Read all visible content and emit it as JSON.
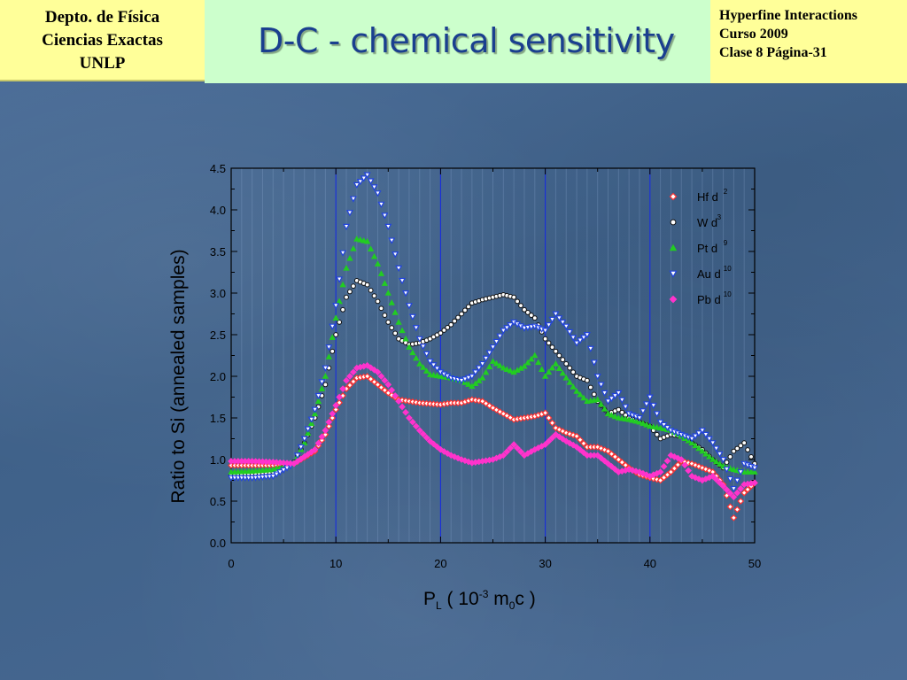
{
  "header": {
    "left_lines": [
      "Depto. de Física",
      "Ciencias Exactas",
      "UNLP"
    ],
    "title": "D-C -  chemical sensitivity",
    "right_lines": [
      "Hyperfine Interactions",
      "Curso 2009",
      "Clase 8  Página-31"
    ]
  },
  "chart_data": {
    "type": "scatter",
    "ylabel": "Ratio to Si (annealed samples)",
    "xlabel_parts": {
      "p": "P",
      "p_sub": "L",
      "open": " ( 10",
      "exp": "-3",
      "m": " m",
      "m_sub": "0",
      "close": "c )"
    },
    "xlim": [
      0,
      50
    ],
    "ylim": [
      0.0,
      4.5
    ],
    "xticks": [
      "0",
      "10",
      "20",
      "30",
      "40",
      "50"
    ],
    "yticks": [
      "0.0",
      "0.5",
      "1.0",
      "1.5",
      "2.0",
      "2.5",
      "3.0",
      "3.5",
      "4.0",
      "4.5"
    ],
    "legend_position": "top-right",
    "vertical_lines_x": [
      10,
      20,
      30,
      40
    ],
    "series": [
      {
        "name": "Hf d",
        "sup": "2",
        "marker": "diamond-open",
        "color": "#ff3333",
        "points": [
          [
            0,
            0.93
          ],
          [
            2,
            0.93
          ],
          [
            4,
            0.93
          ],
          [
            6,
            0.95
          ],
          [
            8,
            1.1
          ],
          [
            9,
            1.3
          ],
          [
            10,
            1.6
          ],
          [
            11,
            1.85
          ],
          [
            12,
            1.98
          ],
          [
            13,
            2.0
          ],
          [
            14,
            1.9
          ],
          [
            15,
            1.8
          ],
          [
            16,
            1.72
          ],
          [
            17,
            1.7
          ],
          [
            18,
            1.68
          ],
          [
            19,
            1.67
          ],
          [
            20,
            1.66
          ],
          [
            21,
            1.68
          ],
          [
            22,
            1.68
          ],
          [
            23,
            1.72
          ],
          [
            24,
            1.7
          ],
          [
            25,
            1.62
          ],
          [
            26,
            1.55
          ],
          [
            27,
            1.48
          ],
          [
            28,
            1.5
          ],
          [
            29,
            1.52
          ],
          [
            30,
            1.56
          ],
          [
            31,
            1.38
          ],
          [
            32,
            1.32
          ],
          [
            33,
            1.28
          ],
          [
            34,
            1.15
          ],
          [
            35,
            1.15
          ],
          [
            36,
            1.1
          ],
          [
            37,
            1.0
          ],
          [
            38,
            0.9
          ],
          [
            39,
            0.82
          ],
          [
            40,
            0.78
          ],
          [
            41,
            0.75
          ],
          [
            42,
            0.85
          ],
          [
            43,
            0.98
          ],
          [
            44,
            0.95
          ],
          [
            45,
            0.9
          ],
          [
            46,
            0.85
          ],
          [
            47,
            0.7
          ],
          [
            48,
            0.3
          ],
          [
            49,
            0.6
          ],
          [
            50,
            0.72
          ]
        ]
      },
      {
        "name": "W d",
        "sup": "3",
        "marker": "circle-open",
        "color": "#111111",
        "points": [
          [
            0,
            0.82
          ],
          [
            2,
            0.83
          ],
          [
            4,
            0.85
          ],
          [
            6,
            0.97
          ],
          [
            7,
            1.2
          ],
          [
            8,
            1.5
          ],
          [
            9,
            1.9
          ],
          [
            10,
            2.5
          ],
          [
            11,
            2.95
          ],
          [
            12,
            3.15
          ],
          [
            13,
            3.1
          ],
          [
            14,
            2.9
          ],
          [
            15,
            2.65
          ],
          [
            16,
            2.45
          ],
          [
            17,
            2.38
          ],
          [
            18,
            2.4
          ],
          [
            19,
            2.45
          ],
          [
            20,
            2.52
          ],
          [
            21,
            2.62
          ],
          [
            22,
            2.75
          ],
          [
            23,
            2.88
          ],
          [
            24,
            2.92
          ],
          [
            25,
            2.95
          ],
          [
            26,
            2.98
          ],
          [
            27,
            2.95
          ],
          [
            28,
            2.8
          ],
          [
            29,
            2.7
          ],
          [
            30,
            2.45
          ],
          [
            31,
            2.3
          ],
          [
            32,
            2.15
          ],
          [
            33,
            2.0
          ],
          [
            34,
            1.95
          ],
          [
            35,
            1.7
          ],
          [
            36,
            1.55
          ],
          [
            37,
            1.6
          ],
          [
            38,
            1.5
          ],
          [
            39,
            1.45
          ],
          [
            40,
            1.4
          ],
          [
            41,
            1.25
          ],
          [
            42,
            1.3
          ],
          [
            43,
            1.28
          ],
          [
            44,
            1.2
          ],
          [
            45,
            1.12
          ],
          [
            46,
            1.0
          ],
          [
            47,
            0.9
          ],
          [
            48,
            1.1
          ],
          [
            49,
            1.2
          ],
          [
            50,
            0.95
          ]
        ]
      },
      {
        "name": "Pt d",
        "sup": "9",
        "marker": "triangle-up",
        "color": "#22cc22",
        "points": [
          [
            0,
            0.85
          ],
          [
            2,
            0.86
          ],
          [
            4,
            0.88
          ],
          [
            6,
            0.96
          ],
          [
            7,
            1.2
          ],
          [
            8,
            1.55
          ],
          [
            9,
            2.0
          ],
          [
            10,
            2.7
          ],
          [
            11,
            3.3
          ],
          [
            12,
            3.65
          ],
          [
            13,
            3.62
          ],
          [
            14,
            3.35
          ],
          [
            15,
            3.0
          ],
          [
            16,
            2.65
          ],
          [
            17,
            2.35
          ],
          [
            18,
            2.15
          ],
          [
            19,
            2.02
          ],
          [
            20,
            2.0
          ],
          [
            21,
            1.98
          ],
          [
            22,
            1.95
          ],
          [
            23,
            1.88
          ],
          [
            24,
            1.98
          ],
          [
            25,
            2.18
          ],
          [
            26,
            2.1
          ],
          [
            27,
            2.05
          ],
          [
            28,
            2.12
          ],
          [
            29,
            2.25
          ],
          [
            30,
            2.0
          ],
          [
            31,
            2.15
          ],
          [
            32,
            1.98
          ],
          [
            33,
            1.82
          ],
          [
            34,
            1.7
          ],
          [
            35,
            1.72
          ],
          [
            36,
            1.55
          ],
          [
            37,
            1.5
          ],
          [
            38,
            1.48
          ],
          [
            39,
            1.45
          ],
          [
            40,
            1.4
          ],
          [
            41,
            1.38
          ],
          [
            42,
            1.35
          ],
          [
            43,
            1.28
          ],
          [
            44,
            1.2
          ],
          [
            45,
            1.1
          ],
          [
            46,
            1.0
          ],
          [
            47,
            0.92
          ],
          [
            48,
            0.88
          ],
          [
            49,
            0.85
          ],
          [
            50,
            0.85
          ]
        ]
      },
      {
        "name": "Au d",
        "sup": "10",
        "marker": "triangle-down",
        "color": "#2244dd",
        "points": [
          [
            0,
            0.78
          ],
          [
            2,
            0.78
          ],
          [
            4,
            0.8
          ],
          [
            6,
            0.95
          ],
          [
            7,
            1.25
          ],
          [
            8,
            1.6
          ],
          [
            9,
            2.1
          ],
          [
            10,
            2.85
          ],
          [
            11,
            3.8
          ],
          [
            12,
            4.3
          ],
          [
            13,
            4.42
          ],
          [
            14,
            4.2
          ],
          [
            15,
            3.8
          ],
          [
            16,
            3.3
          ],
          [
            17,
            2.85
          ],
          [
            18,
            2.45
          ],
          [
            19,
            2.18
          ],
          [
            20,
            2.05
          ],
          [
            21,
            1.98
          ],
          [
            22,
            1.95
          ],
          [
            23,
            2.0
          ],
          [
            24,
            2.15
          ],
          [
            25,
            2.35
          ],
          [
            26,
            2.55
          ],
          [
            27,
            2.65
          ],
          [
            28,
            2.58
          ],
          [
            29,
            2.6
          ],
          [
            30,
            2.55
          ],
          [
            31,
            2.75
          ],
          [
            32,
            2.6
          ],
          [
            33,
            2.4
          ],
          [
            34,
            2.5
          ],
          [
            35,
            2.0
          ],
          [
            36,
            1.7
          ],
          [
            37,
            1.8
          ],
          [
            38,
            1.55
          ],
          [
            39,
            1.5
          ],
          [
            40,
            1.75
          ],
          [
            41,
            1.45
          ],
          [
            42,
            1.35
          ],
          [
            43,
            1.3
          ],
          [
            44,
            1.25
          ],
          [
            45,
            1.35
          ],
          [
            46,
            1.2
          ],
          [
            47,
            1.0
          ],
          [
            48,
            0.65
          ],
          [
            49,
            0.95
          ],
          [
            50,
            0.9
          ]
        ]
      },
      {
        "name": "Pb d",
        "sup": "10",
        "marker": "diamond",
        "color": "#ff33cc",
        "points": [
          [
            0,
            0.98
          ],
          [
            2,
            0.98
          ],
          [
            4,
            0.97
          ],
          [
            6,
            0.95
          ],
          [
            8,
            1.12
          ],
          [
            9,
            1.35
          ],
          [
            10,
            1.65
          ],
          [
            11,
            1.95
          ],
          [
            12,
            2.1
          ],
          [
            13,
            2.13
          ],
          [
            14,
            2.05
          ],
          [
            15,
            1.9
          ],
          [
            16,
            1.7
          ],
          [
            17,
            1.5
          ],
          [
            18,
            1.35
          ],
          [
            19,
            1.22
          ],
          [
            20,
            1.12
          ],
          [
            21,
            1.05
          ],
          [
            22,
            1.0
          ],
          [
            23,
            0.96
          ],
          [
            24,
            0.98
          ],
          [
            25,
            1.0
          ],
          [
            26,
            1.05
          ],
          [
            27,
            1.18
          ],
          [
            28,
            1.05
          ],
          [
            29,
            1.12
          ],
          [
            30,
            1.18
          ],
          [
            31,
            1.3
          ],
          [
            32,
            1.22
          ],
          [
            33,
            1.15
          ],
          [
            34,
            1.05
          ],
          [
            35,
            1.05
          ],
          [
            36,
            0.95
          ],
          [
            37,
            0.85
          ],
          [
            38,
            0.88
          ],
          [
            39,
            0.85
          ],
          [
            40,
            0.8
          ],
          [
            41,
            0.85
          ],
          [
            42,
            1.05
          ],
          [
            43,
            1.0
          ],
          [
            44,
            0.8
          ],
          [
            45,
            0.75
          ],
          [
            46,
            0.8
          ],
          [
            47,
            0.68
          ],
          [
            48,
            0.55
          ],
          [
            49,
            0.7
          ],
          [
            50,
            0.72
          ]
        ]
      }
    ]
  }
}
